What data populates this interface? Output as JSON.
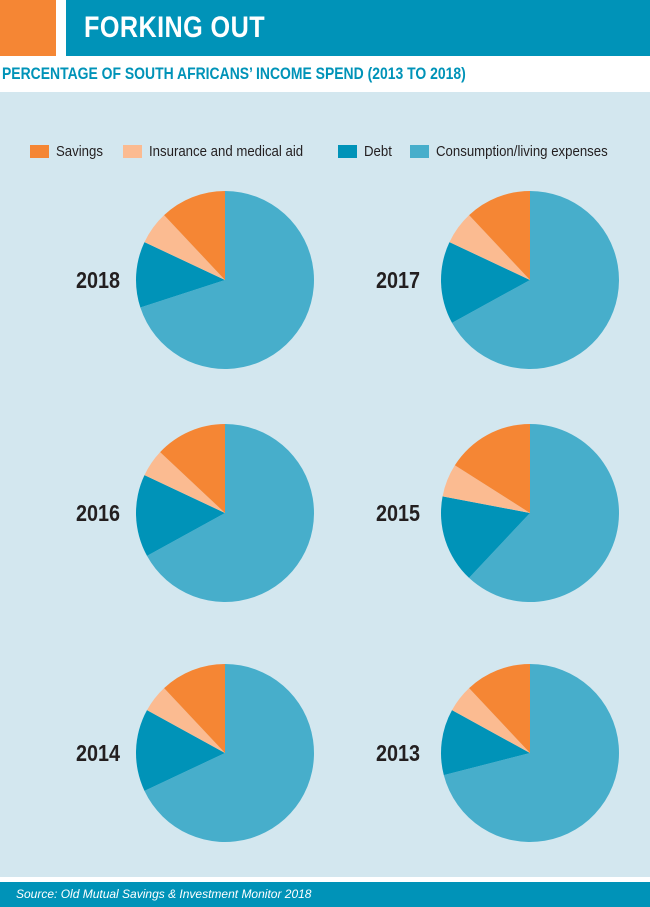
{
  "header": {
    "title": "FORKING OUT"
  },
  "chart_data": {
    "type": "pie",
    "title": "PERCENTAGE OF SOUTH AFRICANS’ INCOME SPEND (2013 TO 2018)",
    "legend": [
      {
        "name": "Savings",
        "color": "#f58634"
      },
      {
        "name": "Insurance and medical aid",
        "color": "#fbbb91"
      },
      {
        "name": "Debt",
        "color": "#0093b8"
      },
      {
        "name": "Consumption/living expenses",
        "color": "#47aecb"
      }
    ],
    "categories": [
      "Savings",
      "Insurance and medical aid",
      "Debt",
      "Consumption/living expenses"
    ],
    "pies": [
      {
        "year": "2018",
        "values": [
          12,
          6,
          12,
          70
        ]
      },
      {
        "year": "2017",
        "values": [
          12,
          6,
          15,
          67
        ]
      },
      {
        "year": "2016",
        "values": [
          13,
          5,
          15,
          67
        ]
      },
      {
        "year": "2015",
        "values": [
          16,
          6,
          16,
          62
        ]
      },
      {
        "year": "2014",
        "values": [
          12,
          5,
          15,
          68
        ]
      },
      {
        "year": "2013",
        "values": [
          12,
          5,
          12,
          71
        ]
      }
    ],
    "legend_position": "top"
  },
  "footer": {
    "source": "Source: Old Mutual Savings & Investment Monitor 2018"
  }
}
